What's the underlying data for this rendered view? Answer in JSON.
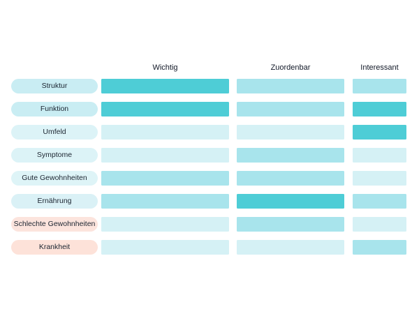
{
  "chart_data": {
    "type": "heatmap",
    "title": "",
    "grid": false,
    "legend_position": "none",
    "columns": [
      {
        "id": "wichtig",
        "label": "Wichtig"
      },
      {
        "id": "zuordenbar",
        "label": "Zuordenbar"
      },
      {
        "id": "interessant",
        "label": "Interessant"
      }
    ],
    "intensity_levels": {
      "low": 1,
      "mid": 2,
      "high": 3
    },
    "level_colors": {
      "low": "#d5f1f5",
      "mid": "#a8e4ec",
      "high": "#4ecdd6"
    },
    "rows": [
      {
        "label": "Struktur",
        "label_bg": "#c9edf3",
        "values": [
          "high",
          "mid",
          "mid"
        ],
        "values_numeric": [
          3,
          2,
          2
        ]
      },
      {
        "label": "Funktion",
        "label_bg": "#c9edf3",
        "values": [
          "high",
          "mid",
          "high"
        ],
        "values_numeric": [
          3,
          2,
          3
        ]
      },
      {
        "label": "Umfeld",
        "label_bg": "#dcf3f7",
        "values": [
          "low",
          "low",
          "high"
        ],
        "values_numeric": [
          1,
          1,
          3
        ]
      },
      {
        "label": "Symptome",
        "label_bg": "#dcf3f7",
        "values": [
          "low",
          "mid",
          "low"
        ],
        "values_numeric": [
          1,
          2,
          1
        ]
      },
      {
        "label": "Gute Gewohnheiten",
        "label_bg": "#def4f7",
        "values": [
          "mid",
          "mid",
          "low"
        ],
        "values_numeric": [
          2,
          2,
          1
        ]
      },
      {
        "label": "Ernährung",
        "label_bg": "#daf1f6",
        "values": [
          "mid",
          "high",
          "mid"
        ],
        "values_numeric": [
          2,
          3,
          2
        ]
      },
      {
        "label": "Schlechte Gewohnheiten",
        "label_bg": "#fce4dd",
        "values": [
          "low",
          "mid",
          "low"
        ],
        "values_numeric": [
          1,
          2,
          1
        ]
      },
      {
        "label": "Krankheit",
        "label_bg": "#fde2d9",
        "values": [
          "low",
          "low",
          "mid"
        ],
        "values_numeric": [
          1,
          1,
          2
        ]
      }
    ]
  }
}
